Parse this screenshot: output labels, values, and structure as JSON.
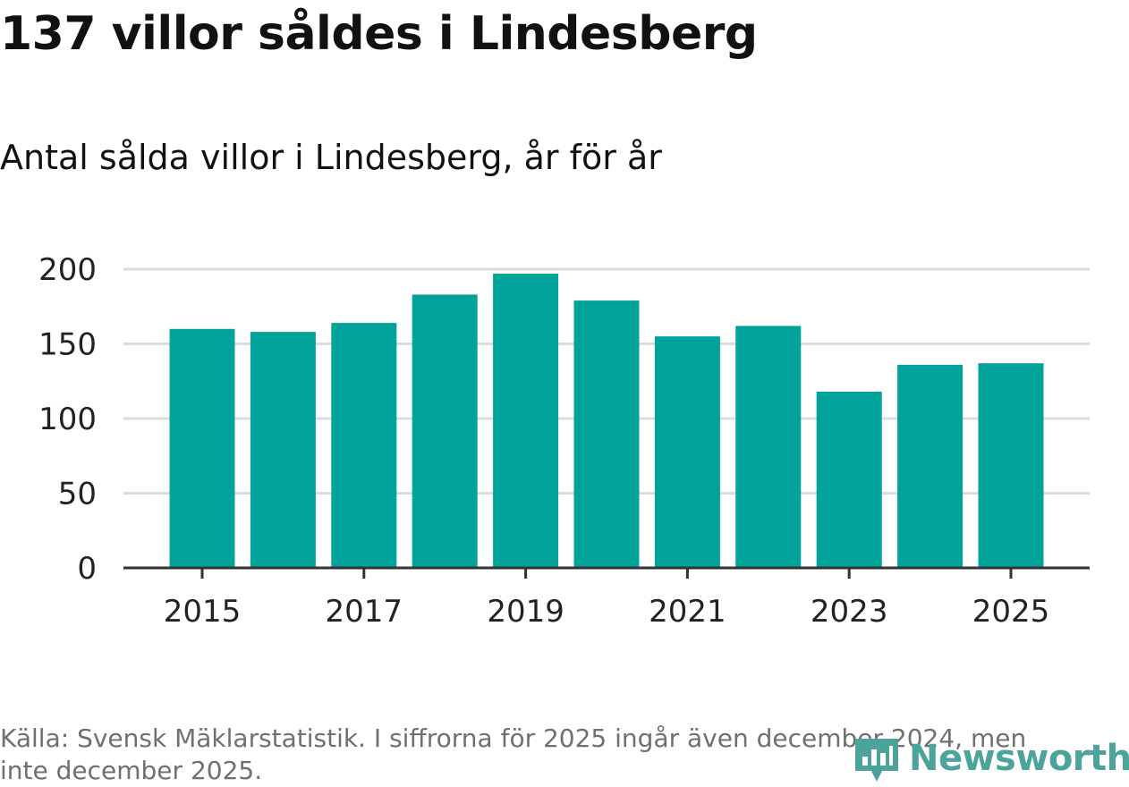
{
  "title": "137 villor såldes i Lindesberg",
  "subtitle": "Antal sålda villor i Lindesberg, år för år",
  "source": "Källa: Svensk Mäklarstatistik. I siffrorna för 2025 ingår även december 2024, men inte december 2025.",
  "logo": {
    "text": "Newsworthy",
    "icon": "bar-chart-badge-icon",
    "color": "#4ba39b"
  },
  "colors": {
    "bar": "#00a39a",
    "grid": "#dcdcdc",
    "axis": "#333333",
    "tick_label": "#222222"
  },
  "chart_data": {
    "type": "bar",
    "categories": [
      "2015",
      "2016",
      "2017",
      "2018",
      "2019",
      "2020",
      "2021",
      "2022",
      "2023",
      "2024",
      "2025"
    ],
    "values": [
      160,
      158,
      164,
      183,
      197,
      179,
      155,
      162,
      118,
      136,
      137
    ],
    "x_tick_labels": [
      "2015",
      "2017",
      "2019",
      "2021",
      "2023",
      "2025"
    ],
    "y_ticks": [
      0,
      50,
      100,
      150,
      200
    ],
    "ylim": [
      0,
      200
    ],
    "xlabel": "",
    "ylabel": "",
    "grid": true,
    "legend": "none"
  }
}
